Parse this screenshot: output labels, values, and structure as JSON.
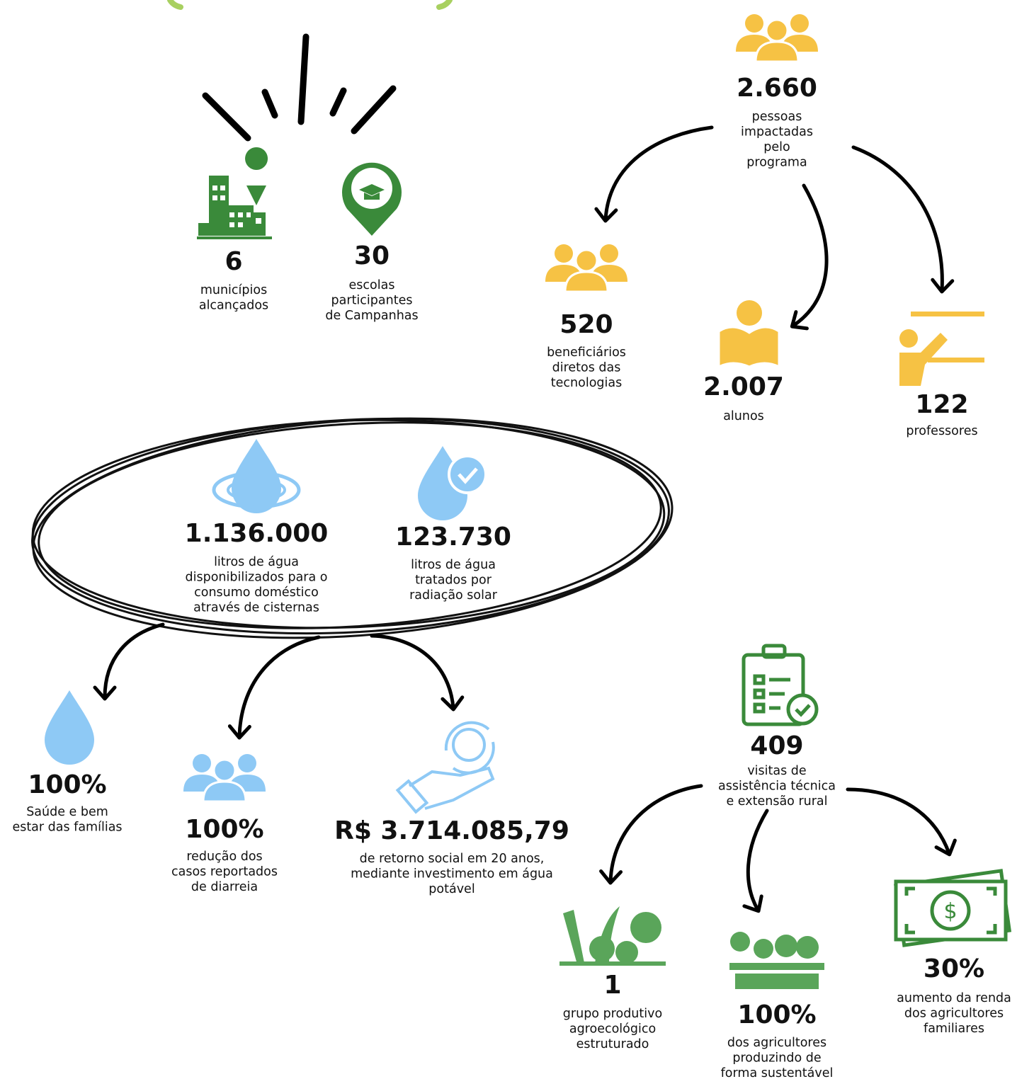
{
  "stats": [
    {
      "value": "6",
      "label": [
        "municípios",
        "alcançados"
      ]
    },
    {
      "value": "30",
      "label": [
        "escolas",
        "participantes",
        "de Campanhas"
      ]
    },
    {
      "value": "2.660",
      "label": [
        "pessoas",
        "impactadas",
        "pelo",
        "programa"
      ]
    },
    {
      "value": "520",
      "label": [
        "beneficiários",
        "diretos das",
        "tecnologias"
      ]
    },
    {
      "value": "2.007",
      "label": [
        "alunos"
      ]
    },
    {
      "value": "122",
      "label": [
        "professores"
      ]
    },
    {
      "value": "1.136.000",
      "label": [
        "litros de água",
        "disponibilizados para o",
        "consumo doméstico",
        "através de cisternas"
      ]
    },
    {
      "value": "123.730",
      "label": [
        "litros de água",
        "tratados por",
        "radiação solar"
      ]
    },
    {
      "value": "100%",
      "label": [
        "Saúde e bem",
        "estar das famílias"
      ]
    },
    {
      "value": "100%",
      "label": [
        "redução dos",
        "casos reportados",
        "de diarreia"
      ]
    },
    {
      "value": "R$ 3.714.085,79",
      "label": [
        "de retorno social em 20 anos,",
        "mediante investimento em água",
        "potável"
      ]
    },
    {
      "value": "409",
      "label": [
        "visitas de",
        "assistência técnica",
        "e extensão rural"
      ]
    },
    {
      "value": "1",
      "label": [
        "grupo produtivo",
        "agroecológico",
        "estruturado"
      ]
    },
    {
      "value": "100%",
      "label": [
        "dos agricultores",
        "produzindo de",
        "forma sustentável"
      ]
    },
    {
      "value": "30%",
      "label": [
        "aumento da renda",
        "dos agricultores",
        "familiares"
      ]
    }
  ]
}
